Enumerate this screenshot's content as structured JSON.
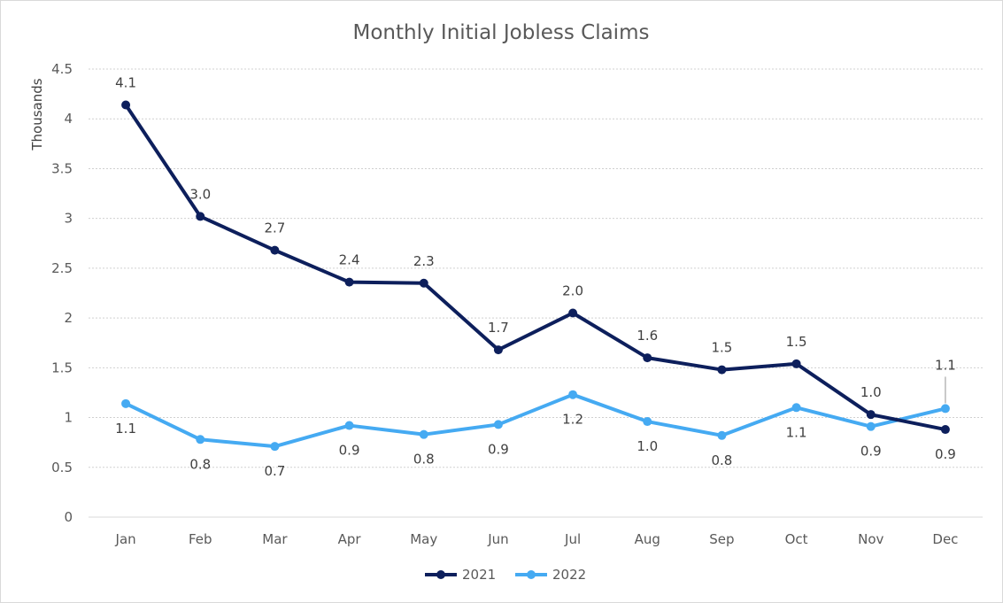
{
  "chart_data": {
    "type": "line",
    "title": "Monthly Initial Jobless Claims",
    "xlabel": "",
    "ylabel": "Thousands",
    "ylim": [
      0,
      4.5
    ],
    "yticks": [
      0,
      0.5,
      1,
      1.5,
      2,
      2.5,
      3,
      3.5,
      4,
      4.5
    ],
    "ytick_labels": [
      "0",
      "0.5",
      "1",
      "1.5",
      "2",
      "2.5",
      "3",
      "3.5",
      "4",
      "4.5"
    ],
    "grid": true,
    "legend_position": "bottom",
    "categories": [
      "Jan",
      "Feb",
      "Mar",
      "Apr",
      "May",
      "Jun",
      "Jul",
      "Aug",
      "Sep",
      "Oct",
      "Nov",
      "Dec"
    ],
    "series": [
      {
        "name": "2021",
        "color": "#0d1f5c",
        "values": [
          4.14,
          3.02,
          2.68,
          2.36,
          2.35,
          1.68,
          2.05,
          1.6,
          1.48,
          1.54,
          1.03,
          0.88
        ],
        "labels": [
          "4.1",
          "3.0",
          "2.7",
          "2.4",
          "2.3",
          "1.7",
          "2.0",
          "1.6",
          "1.5",
          "1.5",
          "1.0",
          "0.9"
        ],
        "label_position": [
          "above",
          "above",
          "above",
          "above",
          "above",
          "above",
          "above",
          "above",
          "above",
          "above",
          "above",
          "below"
        ]
      },
      {
        "name": "2022",
        "color": "#45aaf2",
        "values": [
          1.14,
          0.78,
          0.71,
          0.92,
          0.83,
          0.93,
          1.23,
          0.96,
          0.82,
          1.1,
          0.91,
          1.09
        ],
        "labels": [
          "1.1",
          "0.8",
          "0.7",
          "0.9",
          "0.8",
          "0.9",
          "1.2",
          "1.0",
          "0.8",
          "1.1",
          "0.9",
          "1.1"
        ],
        "label_position": [
          "below",
          "below",
          "below",
          "below",
          "below",
          "below",
          "below",
          "below",
          "below",
          "below",
          "below",
          "above-callout"
        ]
      }
    ]
  }
}
